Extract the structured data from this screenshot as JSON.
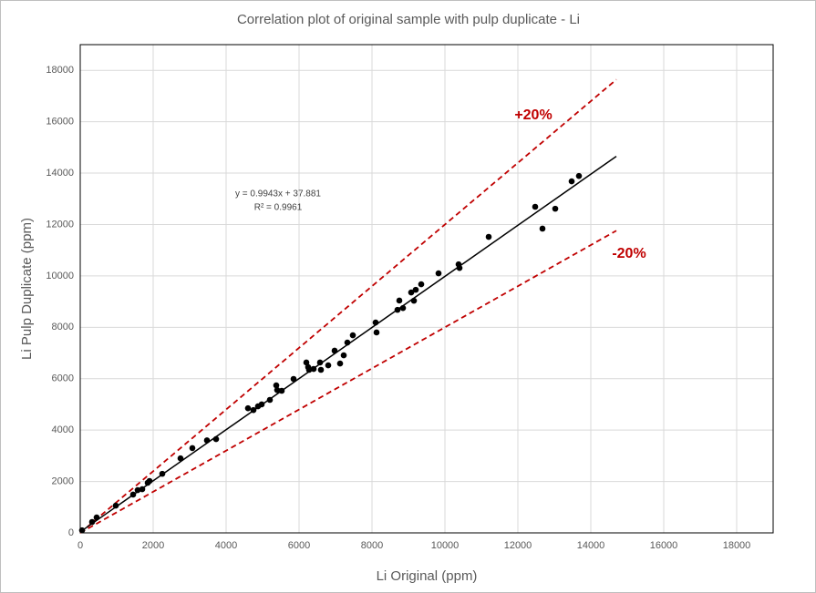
{
  "chart_data": {
    "type": "scatter",
    "title": "Correlation plot of original sample with pulp duplicate - Li",
    "x_label": "Li Original (ppm)",
    "y_label": "Li Pulp Duplicate (ppm)",
    "xlim": [
      0,
      19000
    ],
    "ylim": [
      0,
      19000
    ],
    "xticks": [
      0,
      2000,
      4000,
      6000,
      8000,
      10000,
      12000,
      14000,
      16000,
      18000
    ],
    "yticks": [
      0,
      2000,
      4000,
      6000,
      8000,
      10000,
      12000,
      14000,
      16000,
      18000
    ],
    "grid": true,
    "color": "#000000",
    "x": [
      50,
      325,
      450,
      975,
      1450,
      1575,
      1700,
      1850,
      1900,
      2250,
      2750,
      3075,
      3475,
      3725,
      4600,
      4750,
      4875,
      4975,
      5200,
      5375,
      5400,
      5525,
      5850,
      6200,
      6250,
      6275,
      6400,
      6575,
      6600,
      6800,
      6975,
      7125,
      7225,
      7325,
      7475,
      8100,
      8125,
      8700,
      8750,
      8850,
      9075,
      9150,
      9200,
      9350,
      9825,
      10375,
      10400,
      11200,
      12475,
      12675,
      13025,
      13475,
      13675
    ],
    "values": [
      100,
      425,
      600,
      1060,
      1490,
      1665,
      1700,
      1950,
      2020,
      2300,
      2900,
      3300,
      3600,
      3650,
      4850,
      4780,
      4925,
      5000,
      5175,
      5740,
      5560,
      5530,
      5990,
      6630,
      6450,
      6345,
      6380,
      6630,
      6345,
      6520,
      7090,
      6590,
      6910,
      7405,
      7690,
      8185,
      7800,
      8680,
      9040,
      8750,
      9355,
      9035,
      9460,
      9675,
      10100,
      10450,
      10310,
      11520,
      12690,
      11840,
      12615,
      13680,
      13890
    ],
    "lines": [
      {
        "x": [
          0,
          14700
        ],
        "y": [
          0,
          17640
        ],
        "color": "#c00000",
        "dashed": true
      },
      {
        "x": [
          0,
          14700
        ],
        "y": [
          0,
          11760
        ],
        "color": "#c00000",
        "dashed": true
      },
      {
        "x": [
          0,
          14700
        ],
        "y": [
          38,
          14654
        ],
        "color": "#000000",
        "dashed": false
      }
    ],
    "annotations": [
      "y = 0.9943x + 37.881",
      "R² = 0.9961",
      "+20%",
      "-20%"
    ]
  }
}
